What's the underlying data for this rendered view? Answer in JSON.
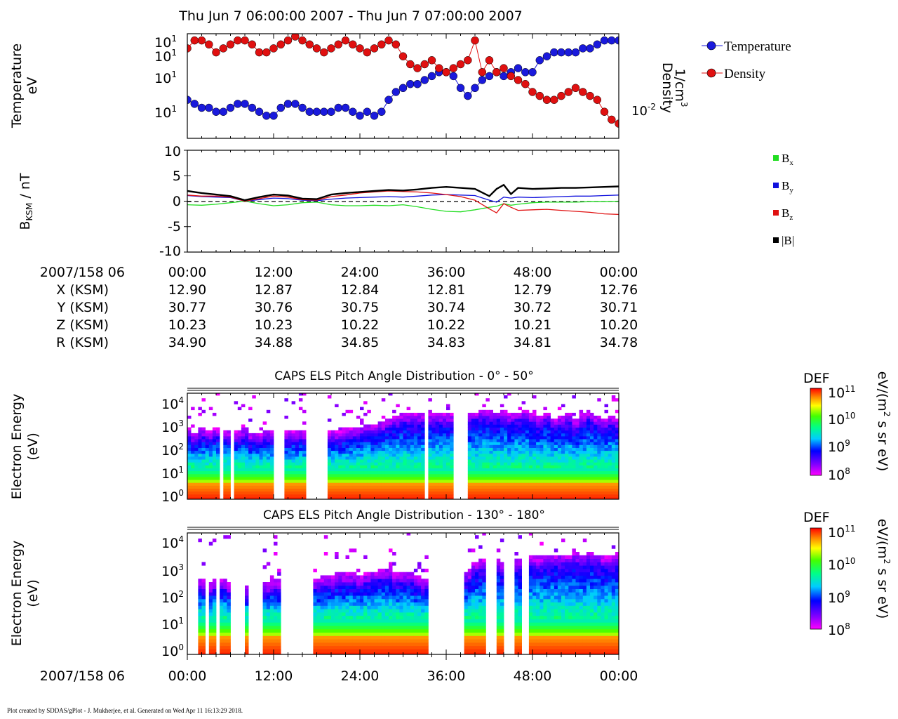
{
  "page": {
    "title": "Thu Jun 7 06:00:00 2007 - Thu Jun 7 07:00:00 2007",
    "footer": "Plot created by SDDAS/gPlot - J. Mukherjee, et al.  Generated on Wed Apr 11 16:13:29 2018."
  },
  "colors": {
    "temperature": "#1a1adc",
    "density": "#e01010",
    "bx": "#22dd22",
    "by": "#1010dd",
    "bz": "#e01010",
    "bmag": "#000000"
  },
  "chart_data": [
    {
      "type": "scatter",
      "name": "plasma-moments",
      "ylabel_left": [
        "Temperature",
        "eV"
      ],
      "ylabel_right": [
        "Density",
        "1/cm"
      ],
      "ylabel_right_sup": "3",
      "left_ticks": [
        {
          "label": "10",
          "sup": "1"
        },
        {
          "label": "10",
          "sup": "1"
        },
        {
          "label": "10",
          "sup": "1"
        },
        {
          "label": "10",
          "sup": "1"
        }
      ],
      "right_ticks": [
        {
          "label": "10",
          "sup": "-2"
        }
      ],
      "legend": [
        {
          "label": "Temperature",
          "color_key": "temperature"
        },
        {
          "label": "Density",
          "color_key": "density"
        }
      ],
      "x_minutes": [
        0,
        60
      ],
      "series": [
        {
          "name": "Temperature",
          "x": [
            0,
            1,
            2,
            3,
            4,
            5,
            6,
            7,
            8,
            9,
            10,
            11,
            12,
            13,
            14,
            15,
            16,
            17,
            18,
            19,
            20,
            21,
            22,
            23,
            24,
            25,
            26,
            27,
            28,
            29,
            30,
            31,
            32,
            33,
            34,
            35,
            36,
            37,
            38,
            39,
            40,
            41,
            42,
            43,
            44,
            45,
            46,
            47,
            48,
            49,
            50,
            51,
            52,
            53,
            54,
            55,
            56,
            57,
            58,
            59,
            60
          ],
          "y": [
            9,
            8,
            7,
            7,
            6,
            6,
            7,
            8,
            8,
            7,
            6,
            5,
            5,
            7,
            8,
            8,
            7,
            6,
            6,
            6,
            6,
            7,
            7,
            6,
            5,
            6,
            5,
            6,
            9,
            11,
            12,
            13,
            13,
            14,
            15,
            16,
            16,
            15,
            12,
            10,
            12,
            14,
            15,
            16,
            15,
            16,
            17,
            16,
            16,
            19,
            20,
            21,
            21,
            21,
            21,
            22,
            22,
            23,
            24,
            24,
            24
          ],
          "scale_min": 0,
          "scale_max": 25
        },
        {
          "name": "Density",
          "x": [
            0,
            1,
            2,
            3,
            4,
            5,
            6,
            7,
            8,
            9,
            10,
            11,
            12,
            13,
            14,
            15,
            16,
            17,
            18,
            19,
            20,
            21,
            22,
            23,
            24,
            25,
            26,
            27,
            28,
            29,
            30,
            31,
            32,
            33,
            34,
            35,
            36,
            37,
            38,
            39,
            40,
            41,
            42,
            43,
            44,
            45,
            46,
            47,
            48,
            49,
            50,
            51,
            52,
            53,
            54,
            55,
            56,
            57,
            58,
            59,
            60
          ],
          "y": [
            22,
            24,
            24,
            23,
            21,
            22,
            23,
            24,
            24,
            23,
            21,
            21,
            22,
            23,
            24,
            25,
            24,
            23,
            22,
            21,
            22,
            23,
            24,
            23,
            22,
            21,
            22,
            23,
            24,
            23,
            20,
            18,
            17,
            18,
            19,
            17,
            16,
            17,
            18,
            19,
            24,
            16,
            19,
            16,
            17,
            15,
            14,
            13,
            11,
            10,
            9,
            9,
            10,
            11,
            12,
            11,
            10,
            9,
            6,
            4,
            3
          ],
          "scale_min": 0,
          "scale_max": 25
        }
      ]
    },
    {
      "type": "line",
      "name": "magnetic-field",
      "ylabel": "B",
      "ylabel_sub": "KSM",
      "ylabel_unit": " / nT",
      "ylim": [
        -10,
        10
      ],
      "y_ticks": [
        "10",
        "5",
        "0",
        "-5",
        "-10"
      ],
      "legend": [
        {
          "label": "B",
          "sub": "x",
          "color_key": "bx"
        },
        {
          "label": "B",
          "sub": "y",
          "color_key": "by"
        },
        {
          "label": "B",
          "sub": "z",
          "color_key": "bz"
        },
        {
          "label": "|B|",
          "sub": "",
          "color_key": "bmag"
        }
      ],
      "x": [
        0,
        2,
        4,
        6,
        8,
        10,
        12,
        14,
        16,
        18,
        20,
        22,
        24,
        26,
        28,
        30,
        32,
        34,
        36,
        38,
        40,
        42,
        43,
        44,
        45,
        46,
        48,
        50,
        52,
        54,
        56,
        58,
        60
      ],
      "series": [
        {
          "name": "Bx",
          "values": [
            -0.7,
            -0.8,
            -0.6,
            -0.3,
            0.0,
            -0.5,
            -0.9,
            -0.7,
            -0.3,
            -0.2,
            -0.7,
            -0.9,
            -0.9,
            -0.8,
            -0.9,
            -0.7,
            -1.1,
            -1.6,
            -2.0,
            -2.1,
            -1.7,
            -1.2,
            -1.0,
            -0.5,
            -0.8,
            -0.6,
            -0.3,
            -0.2,
            -0.2,
            -0.2,
            -0.1,
            -0.1,
            0.0
          ]
        },
        {
          "name": "By",
          "values": [
            1.1,
            0.9,
            0.8,
            0.7,
            0.0,
            0.3,
            0.6,
            0.5,
            0.2,
            0.1,
            0.4,
            0.6,
            0.7,
            0.8,
            0.9,
            0.8,
            1.0,
            1.2,
            1.3,
            1.2,
            1.1,
            0.2,
            -0.2,
            0.8,
            0.6,
            0.8,
            0.7,
            0.8,
            0.9,
            1.0,
            1.0,
            1.1,
            1.2
          ]
        },
        {
          "name": "Bz",
          "values": [
            1.2,
            1.0,
            1.0,
            0.8,
            0.0,
            0.5,
            1.0,
            0.8,
            0.3,
            0.2,
            0.9,
            1.2,
            1.6,
            1.8,
            2.0,
            1.9,
            1.8,
            1.6,
            1.3,
            0.9,
            0.2,
            -1.5,
            -2.3,
            -0.5,
            -1.2,
            -1.8,
            -1.7,
            -1.6,
            -1.8,
            -2.0,
            -2.2,
            -2.5,
            -2.6
          ]
        },
        {
          "name": "|B|",
          "values": [
            2.0,
            1.6,
            1.3,
            1.0,
            0.2,
            0.8,
            1.3,
            1.1,
            0.5,
            0.4,
            1.3,
            1.6,
            1.8,
            2.0,
            2.2,
            2.1,
            2.3,
            2.6,
            2.8,
            2.6,
            2.4,
            1.0,
            2.4,
            3.2,
            1.4,
            2.6,
            2.4,
            2.5,
            2.6,
            2.6,
            2.7,
            2.8,
            2.9
          ]
        }
      ]
    },
    {
      "type": "table",
      "name": "ephemeris",
      "row_labels": [
        "2007/158 06",
        "X (KSM)",
        "Y (KSM)",
        "Z (KSM)",
        "R (KSM)"
      ],
      "rows": [
        [
          "00:00",
          "12:00",
          "24:00",
          "36:00",
          "48:00",
          "00:00"
        ],
        [
          "12.90",
          "12.87",
          "12.84",
          "12.81",
          "12.79",
          "12.76"
        ],
        [
          "30.77",
          "30.76",
          "30.75",
          "30.74",
          "30.72",
          "30.71"
        ],
        [
          "10.23",
          "10.23",
          "10.22",
          "10.22",
          "10.21",
          "10.20"
        ],
        [
          "34.90",
          "34.88",
          "34.85",
          "34.83",
          "34.81",
          "34.78"
        ]
      ]
    },
    {
      "type": "heatmap",
      "name": "els-pad-0-50",
      "title": "CAPS ELS Pitch Angle Distribution - 0° - 50°",
      "ylabel": [
        "Electron Energy",
        "(eV)"
      ],
      "y_ticks": [
        {
          "label": "10",
          "sup": "4"
        },
        {
          "label": "10",
          "sup": "3"
        },
        {
          "label": "10",
          "sup": "2"
        },
        {
          "label": "10",
          "sup": "1"
        },
        {
          "label": "10",
          "sup": "0"
        }
      ],
      "colorbar": {
        "title": "DEF",
        "unit": "eV/(m",
        "unit_sup": "2",
        "unit_tail": " s sr eV)",
        "ticks": [
          {
            "label": "10",
            "sup": "11"
          },
          {
            "label": "10",
            "sup": "10"
          },
          {
            "label": "10",
            "sup": "9"
          },
          {
            "label": "10",
            "sup": "8"
          }
        ]
      },
      "gaps": [
        [
          4.5,
          5.0
        ],
        [
          6.0,
          6.5
        ],
        [
          12.0,
          13.5
        ],
        [
          16.5,
          19.5
        ],
        [
          33.0,
          33.5
        ],
        [
          37.0,
          39.0
        ]
      ],
      "top_decade": [
        2.4,
        2.2,
        2.4,
        2.3,
        2.4,
        2.3,
        2.3,
        2.3,
        2.4,
        2.2,
        2.2,
        2.3,
        2.3,
        2.2,
        2.3,
        2.3,
        2.3,
        2.3,
        2.4,
        2.3,
        2.3,
        2.3,
        2.4,
        2.4,
        2.5,
        2.6,
        2.6,
        2.7,
        2.8,
        2.9,
        3.0,
        3.0,
        3.0,
        3.0,
        3.0,
        3.0,
        3.0,
        3.0,
        3.0,
        3.0,
        3.1,
        3.2,
        3.2,
        3.1,
        3.2,
        3.0,
        3.1,
        3.2,
        3.0,
        2.9,
        3.1,
        2.8,
        2.9,
        3.0,
        2.8,
        3.0,
        3.1,
        2.9,
        2.8,
        2.9,
        2.8
      ]
    },
    {
      "type": "heatmap",
      "name": "els-pad-130-180",
      "title": "CAPS ELS Pitch Angle Distribution - 130° - 180°",
      "ylabel": [
        "Electron Energy",
        "(eV)"
      ],
      "y_ticks": [
        {
          "label": "10",
          "sup": "4"
        },
        {
          "label": "10",
          "sup": "3"
        },
        {
          "label": "10",
          "sup": "2"
        },
        {
          "label": "10",
          "sup": "1"
        },
        {
          "label": "10",
          "sup": "0"
        }
      ],
      "colorbar": {
        "title": "DEF",
        "unit": "eV/(m",
        "unit_sup": "2",
        "unit_tail": " s sr eV)",
        "ticks": [
          {
            "label": "10",
            "sup": "11"
          },
          {
            "label": "10",
            "sup": "10"
          },
          {
            "label": "10",
            "sup": "9"
          },
          {
            "label": "10",
            "sup": "8"
          }
        ]
      },
      "gaps": [
        [
          0,
          1.5
        ],
        [
          2.5,
          3.0
        ],
        [
          4.0,
          4.5
        ],
        [
          6.0,
          8.0
        ],
        [
          8.5,
          10.5
        ],
        [
          13.0,
          17.5
        ],
        [
          33.5,
          38.5
        ],
        [
          41.5,
          43.0
        ],
        [
          44.0,
          45.5
        ],
        [
          46.5,
          47.5
        ]
      ],
      "top_decade": [
        2.2,
        2.2,
        2.2,
        2.1,
        2.2,
        2.2,
        2.1,
        2.0,
        2.0,
        2.0,
        2.1,
        2.1,
        2.2,
        2.2,
        2.0,
        2.0,
        2.0,
        2.0,
        2.2,
        2.3,
        2.3,
        2.4,
        2.4,
        2.4,
        2.3,
        2.4,
        2.5,
        2.6,
        2.6,
        2.4,
        2.4,
        2.5,
        2.3,
        2.2,
        2.2,
        2.2,
        2.2,
        2.2,
        2.3,
        2.5,
        2.8,
        2.9,
        2.9,
        2.9,
        2.8,
        2.9,
        2.9,
        3.0,
        3.0,
        3.0,
        3.1,
        3.1,
        3.1,
        3.1,
        3.2,
        3.1,
        3.2,
        3.1,
        3.0,
        3.0,
        3.1
      ]
    }
  ],
  "time_axis": {
    "label": "2007/158 06",
    "ticks": [
      "00:00",
      "12:00",
      "24:00",
      "36:00",
      "48:00",
      "00:00"
    ]
  }
}
